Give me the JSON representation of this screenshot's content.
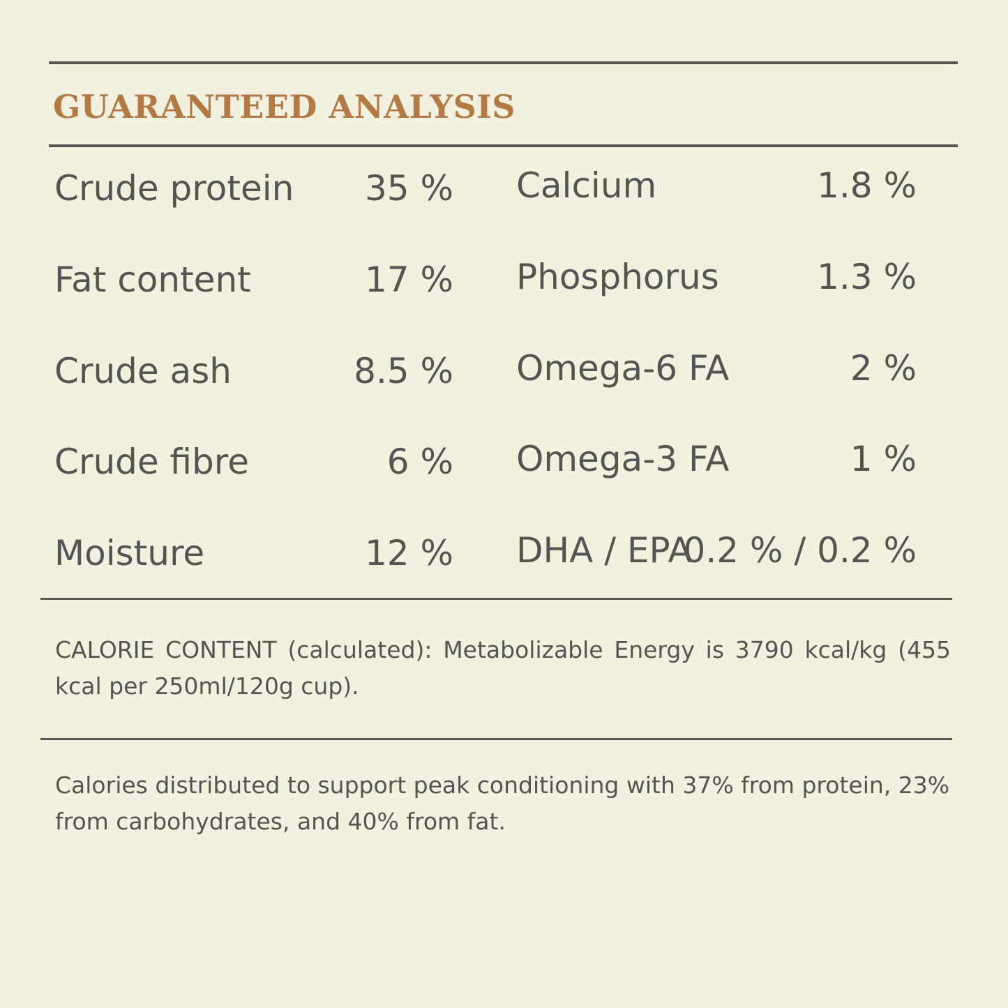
{
  "panel": {
    "title": "GUARANTEED ANALYSIS"
  },
  "analysis": {
    "left": [
      {
        "label": "Crude protein",
        "value": "35 %"
      },
      {
        "label": "Fat content",
        "value": "17 %"
      },
      {
        "label": "Crude ash",
        "value": "8.5 %"
      },
      {
        "label": "Crude fibre",
        "value": "6 %"
      },
      {
        "label": "Moisture",
        "value": "12 %"
      }
    ],
    "right": [
      {
        "label": "Calcium",
        "value": "1.8 %"
      },
      {
        "label": "Phosphorus",
        "value": "1.3 %"
      },
      {
        "label": "Omega-6 FA",
        "value": "2 %"
      },
      {
        "label": "Omega-3 FA",
        "value": "1 %"
      },
      {
        "label": "DHA / EPA",
        "value": "0.2 % / 0.2 %"
      }
    ]
  },
  "calorie": {
    "text": "CALORIE CONTENT (calculated): Metabolizable Energy is 3790 kcal/kg (455 kcal per 250ml/120g cup)."
  },
  "distribution": {
    "text": "Calories distributed to support peak conditioning with 37% from protein, 23% from carbohydrates, and 40% from fat."
  },
  "colors": {
    "background": "#f2f0de",
    "title": "#b37a43",
    "text": "#545454",
    "rule": "#555555"
  }
}
